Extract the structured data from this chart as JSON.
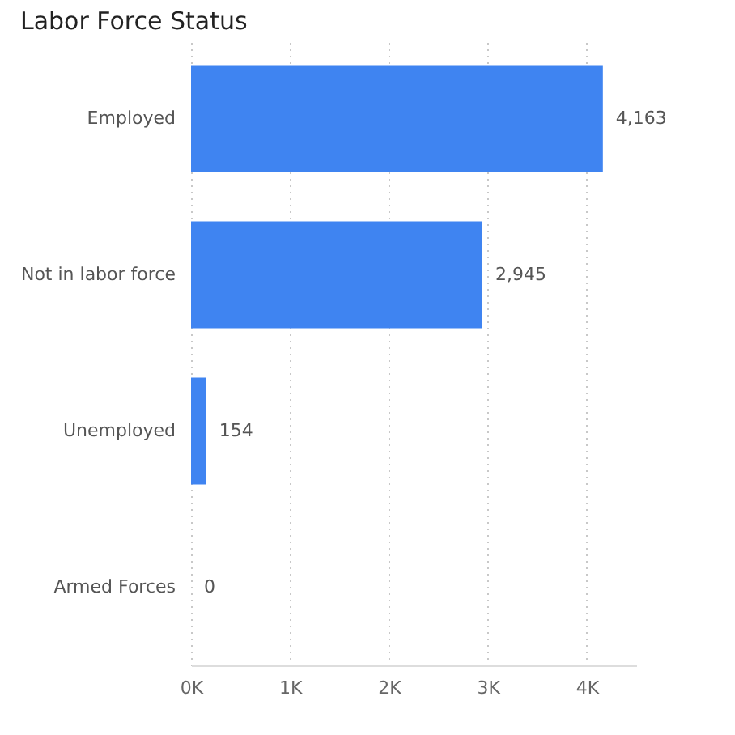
{
  "chart_data": {
    "type": "bar",
    "orientation": "horizontal",
    "title": "Labor Force Status",
    "categories": [
      "Employed",
      "Not in labor force",
      "Unemployed",
      "Armed Forces"
    ],
    "values": [
      4163,
      2945,
      154,
      0
    ],
    "value_labels": [
      "4,163",
      "2,945",
      "154",
      "0"
    ],
    "color": "#3f84f1",
    "xlim": [
      0,
      4500
    ],
    "xticks": [
      {
        "value": 0,
        "label": "0K"
      },
      {
        "value": 1000,
        "label": "1K"
      },
      {
        "value": 2000,
        "label": "2K"
      },
      {
        "value": 3000,
        "label": "3K"
      },
      {
        "value": 4000,
        "label": "4K"
      }
    ],
    "grid": "x"
  }
}
